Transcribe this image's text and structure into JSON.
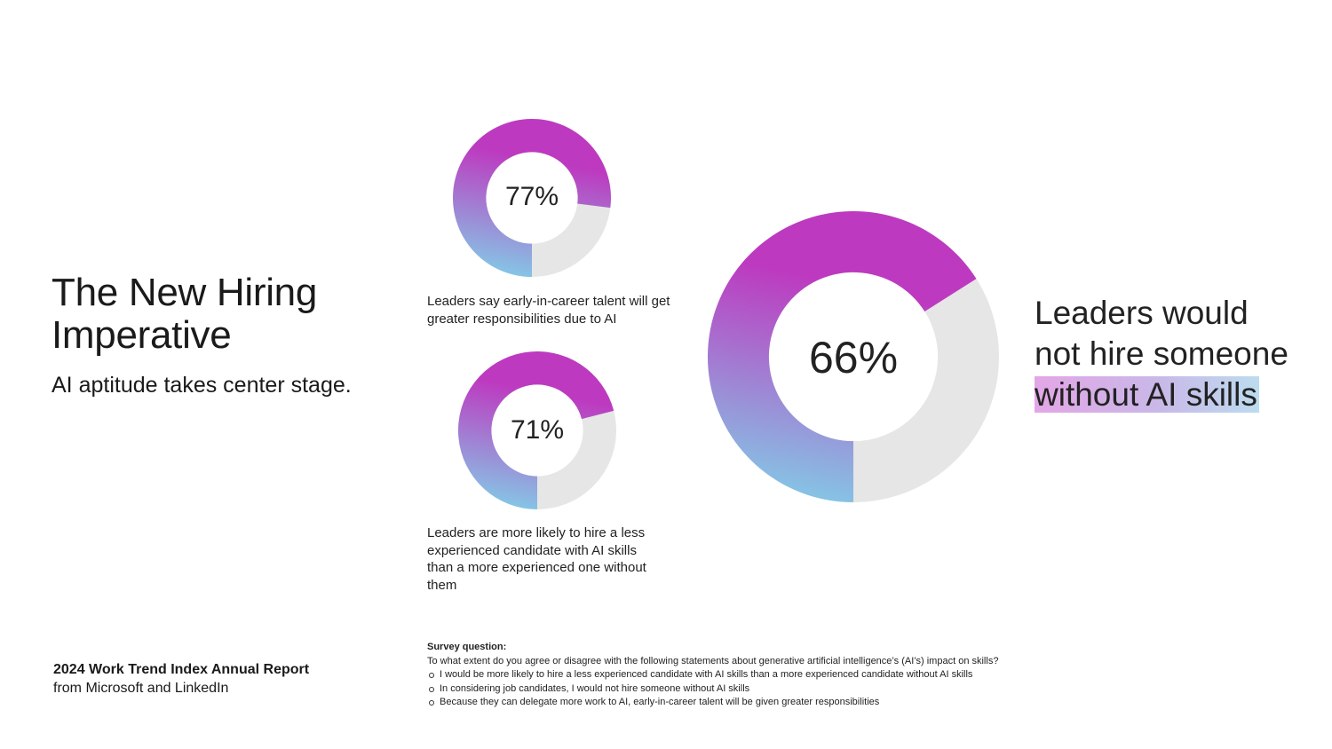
{
  "header": {
    "title": "The New Hiring Imperative",
    "subtitle": "AI aptitude takes center stage."
  },
  "footer": {
    "report_title": "2024 Work Trend Index Annual Report",
    "report_source": "from Microsoft and LinkedIn"
  },
  "headline": {
    "line1": "Leaders would",
    "line2": "not hire someone",
    "highlight": "without AI skills"
  },
  "survey": {
    "title": "Survey question:",
    "question": "To what extent do you agree or disagree with the following statements about generative artificial intelligence’s (AI’s) impact on skills?",
    "items": [
      "I would be more likely to hire a less experienced candidate with AI skills than a more experienced candidate without AI skills",
      "In considering job candidates, I would not hire someone without AI skills",
      "Because they can delegate more work to AI, early-in-career talent will be given greater responsibilities"
    ]
  },
  "colors": {
    "gradient_start": "#bd3ac0",
    "gradient_end": "#84c8e6",
    "remainder": "#e6e6e6"
  },
  "chart_data": [
    {
      "type": "pie",
      "value": 77,
      "label": "77%",
      "caption": "Leaders say early-in-career talent will get greater responsibilities due to AI"
    },
    {
      "type": "pie",
      "value": 71,
      "label": "71%",
      "caption": "Leaders are more likely to hire a less experienced candidate with AI skills than a more experienced one without them"
    },
    {
      "type": "pie",
      "value": 66,
      "label": "66%",
      "caption": ""
    }
  ]
}
